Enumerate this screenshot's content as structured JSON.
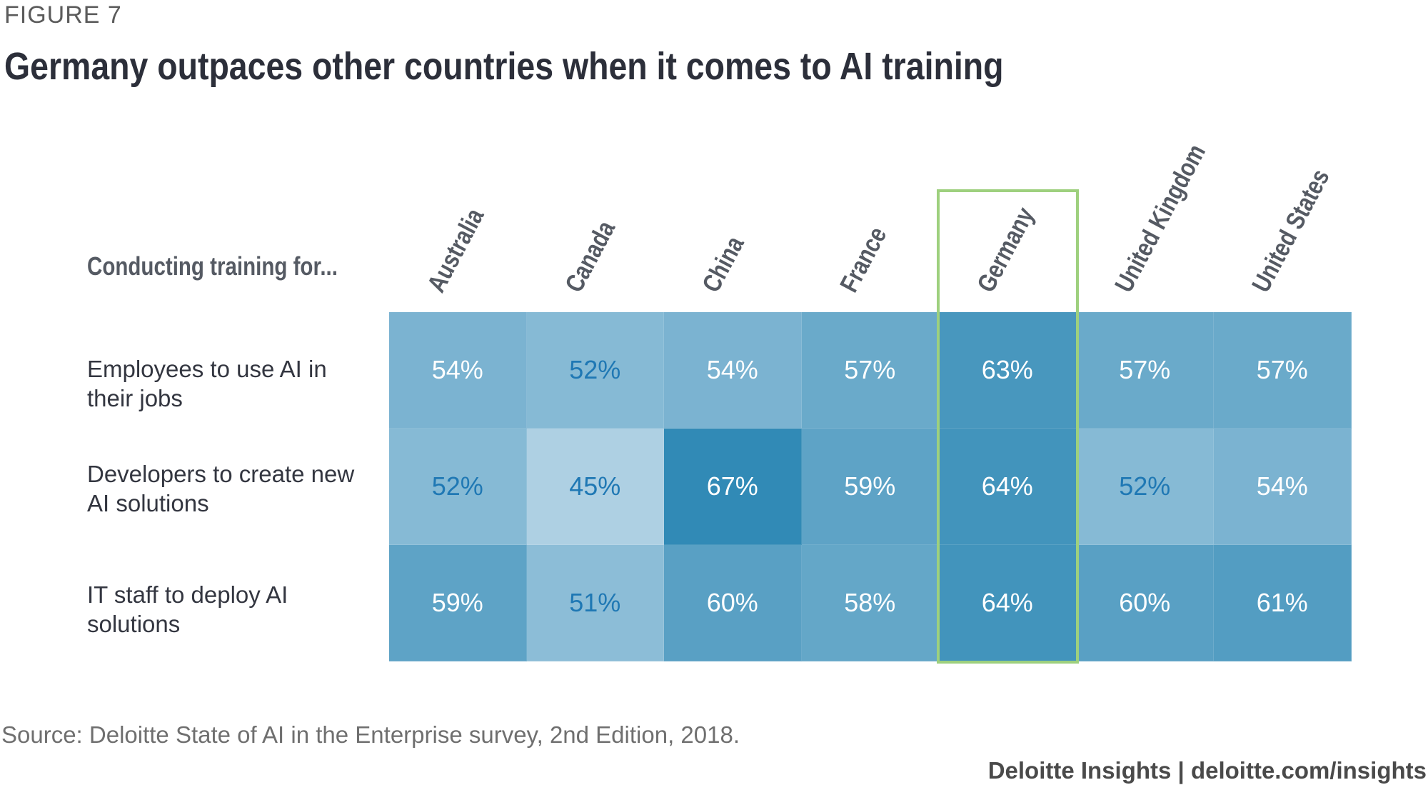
{
  "figure_label": "FIGURE 7",
  "title": "Germany outpaces other countries when it comes to AI training",
  "source": "Source: Deloitte State of AI in the Enterprise survey, 2nd Edition, 2018.",
  "credit": "Deloitte Insights | deloitte.com/insights",
  "chart_data": {
    "type": "heatmap",
    "title": "Germany outpaces other countries when it comes to AI training",
    "row_header": "Conducting training for...",
    "columns": [
      "Australia",
      "Canada",
      "China",
      "France",
      "Germany",
      "United Kingdom",
      "United States"
    ],
    "rows": [
      {
        "label": "Employees to use AI in their jobs",
        "values": [
          54,
          52,
          54,
          57,
          63,
          57,
          57
        ]
      },
      {
        "label": "Developers to create new AI solutions",
        "values": [
          52,
          45,
          67,
          59,
          64,
          52,
          54
        ]
      },
      {
        "label": "IT staff to deploy AI solutions",
        "values": [
          59,
          51,
          60,
          58,
          64,
          60,
          61
        ]
      }
    ],
    "value_suffix": "%",
    "highlighted_column": "Germany",
    "colors": {
      "low": "#aed0e3",
      "high": "#318ab6",
      "text_light": "#ffffff",
      "text_dark": "#1f78b4",
      "highlight_border": "#9ed07e"
    }
  }
}
